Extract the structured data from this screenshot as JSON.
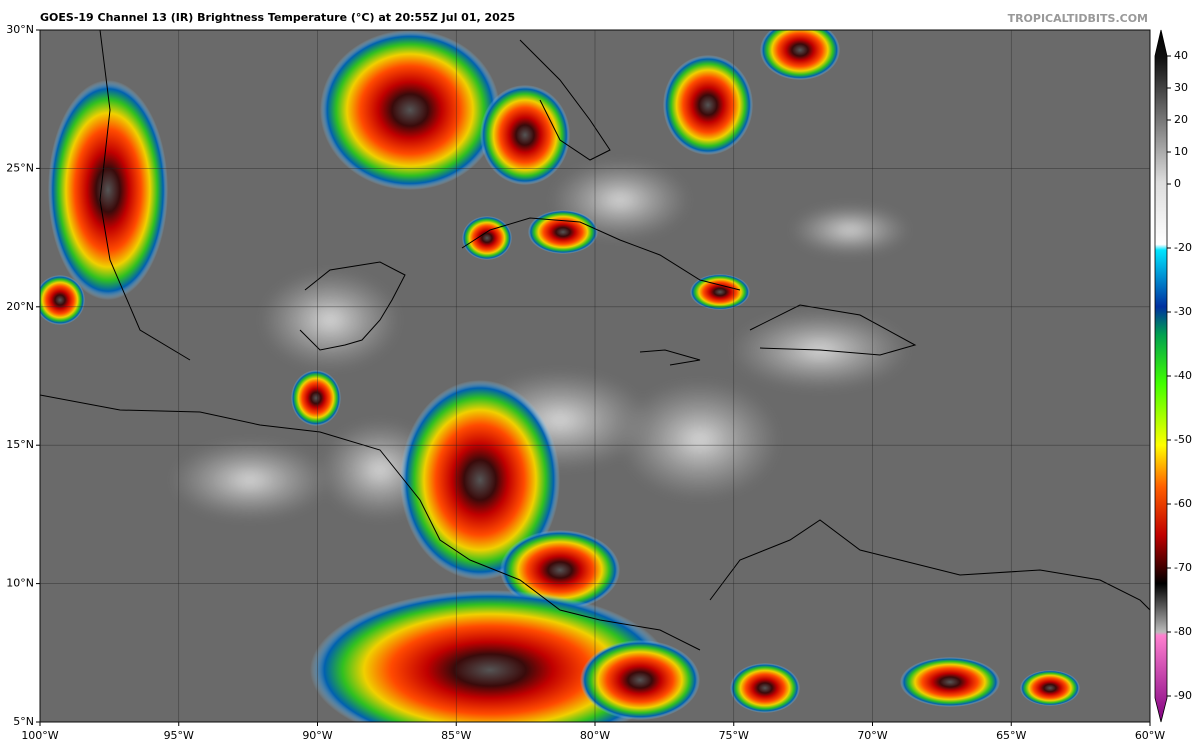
{
  "chart_data": {
    "type": "map",
    "title": "GOES-19 Channel 13 (IR) Brightness Temperature (°C) at 20:55Z Jul 01, 2025",
    "credit": "TROPICALTIDBITS.COM",
    "xlim": [
      -100,
      -60
    ],
    "ylim": [
      5,
      30
    ],
    "xticks": [
      {
        "value": -100,
        "label": "100°W"
      },
      {
        "value": -95,
        "label": "95°W"
      },
      {
        "value": -90,
        "label": "90°W"
      },
      {
        "value": -85,
        "label": "85°W"
      },
      {
        "value": -80,
        "label": "80°W"
      },
      {
        "value": -75,
        "label": "75°W"
      },
      {
        "value": -70,
        "label": "70°W"
      },
      {
        "value": -65,
        "label": "65°W"
      },
      {
        "value": -60,
        "label": "60°W"
      }
    ],
    "yticks": [
      {
        "value": 5,
        "label": "5°N"
      },
      {
        "value": 10,
        "label": "10°N"
      },
      {
        "value": 15,
        "label": "15°N"
      },
      {
        "value": 20,
        "label": "20°N"
      },
      {
        "value": 25,
        "label": "25°N"
      },
      {
        "value": 30,
        "label": "30°N"
      }
    ],
    "grid": true,
    "colorbar_ticks": [
      40,
      30,
      20,
      10,
      0,
      -20,
      -30,
      -40,
      -50,
      -60,
      -70,
      -80,
      -90
    ]
  }
}
